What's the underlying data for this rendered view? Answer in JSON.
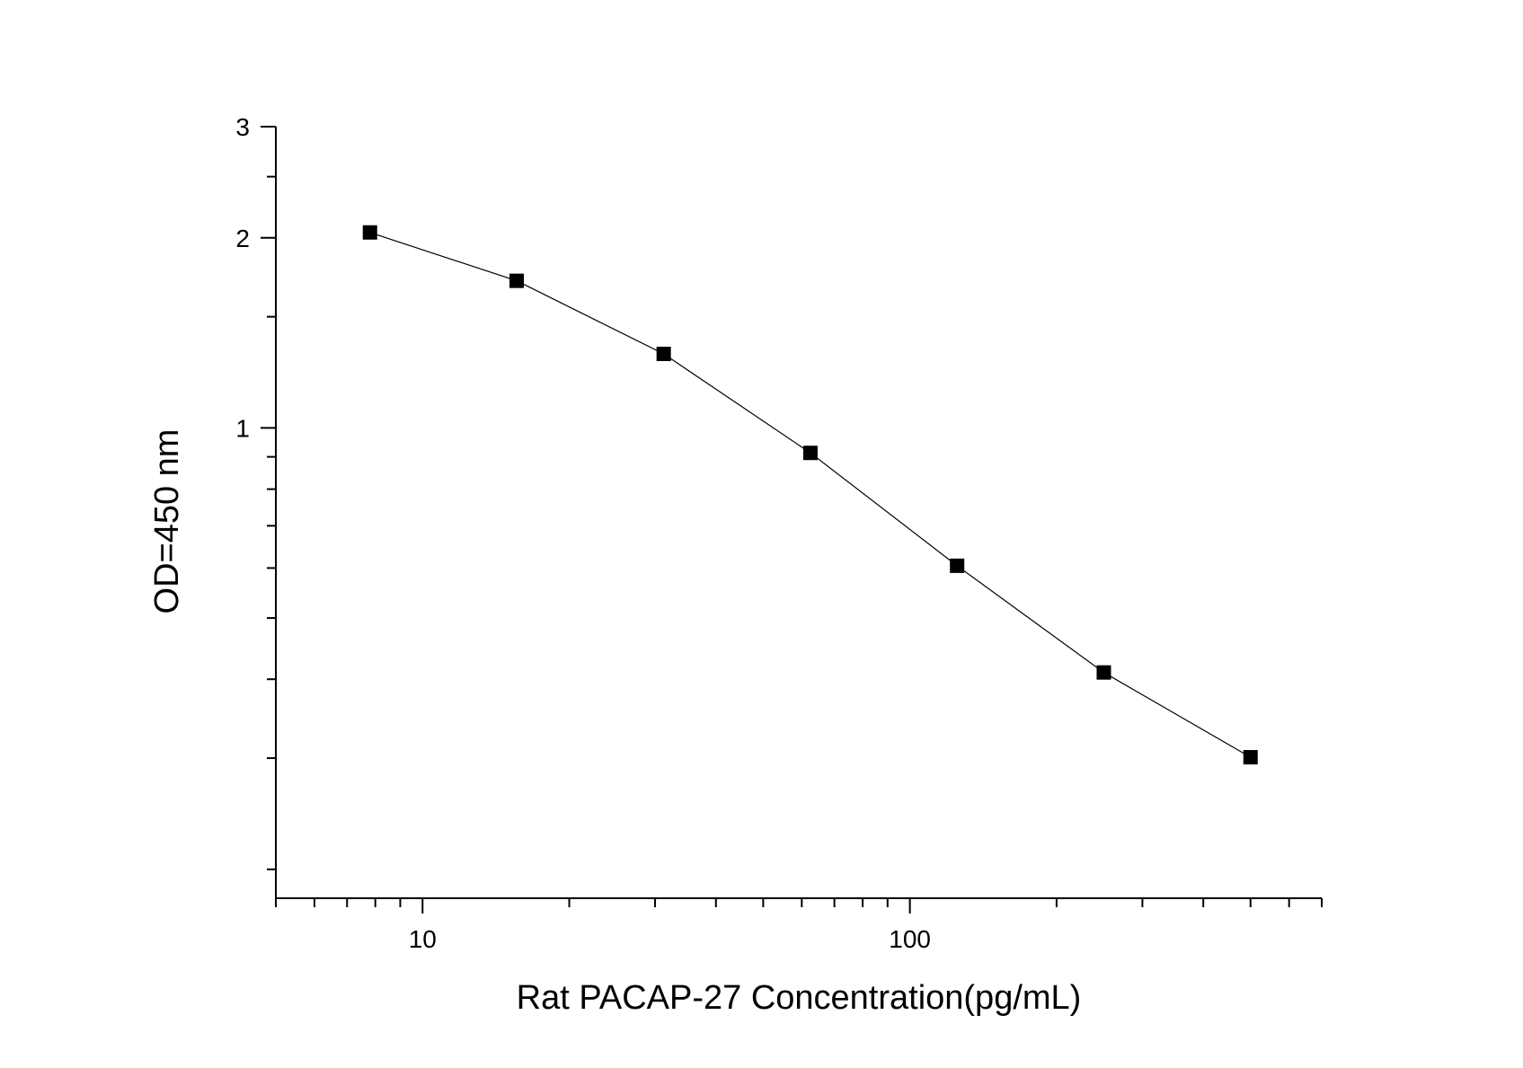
{
  "chart_data": {
    "type": "scatter",
    "xlabel": "Rat PACAP-27  Concentration(pg/mL)",
    "ylabel": "OD=450 nm",
    "x_scale": "log",
    "y_scale": "log",
    "xlim": [
      5,
      700
    ],
    "ylim": [
      0.18,
      3
    ],
    "x_ticks": [
      10,
      100
    ],
    "y_ticks": [
      1,
      2,
      3
    ],
    "x_tick_labels": [
      "10",
      "100"
    ],
    "y_tick_labels": [
      "1",
      "2",
      "3"
    ],
    "grid": false,
    "legend": "none",
    "marker": "square",
    "line": "connected",
    "color": "#000000",
    "series": [
      {
        "x": [
          7.8,
          15.6,
          31.25,
          62.5,
          125,
          250,
          500
        ],
        "y": [
          2.04,
          1.71,
          1.31,
          0.913,
          0.605,
          0.41,
          0.301
        ]
      }
    ]
  }
}
